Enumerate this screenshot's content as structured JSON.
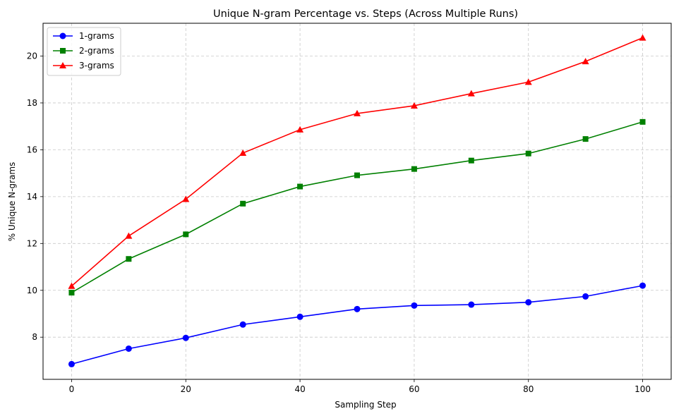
{
  "chart_data": {
    "type": "line",
    "title": "Unique N-gram Percentage vs. Steps (Across Multiple Runs)",
    "xlabel": "Sampling Step",
    "ylabel": "% Unique N-grams",
    "xlim": [
      -5,
      105
    ],
    "ylim": [
      6.2,
      21.4
    ],
    "xticks": [
      0,
      20,
      40,
      60,
      80,
      100
    ],
    "yticks": [
      8,
      10,
      12,
      14,
      16,
      18,
      20
    ],
    "grid": true,
    "legend_position": "top-left",
    "x": [
      0,
      10,
      20,
      30,
      40,
      50,
      60,
      70,
      80,
      90,
      100
    ],
    "series": [
      {
        "name": "1-grams",
        "color": "#0000ff",
        "marker": "circle",
        "values": [
          6.85,
          7.51,
          7.97,
          8.54,
          8.87,
          9.2,
          9.35,
          9.39,
          9.49,
          9.74,
          10.2
        ]
      },
      {
        "name": "2-grams",
        "color": "#008000",
        "marker": "square",
        "values": [
          9.9,
          11.34,
          12.39,
          13.7,
          14.43,
          14.91,
          15.18,
          15.54,
          15.84,
          16.46,
          17.19
        ]
      },
      {
        "name": "3-grams",
        "color": "#ff0000",
        "marker": "triangle",
        "values": [
          10.18,
          12.32,
          13.89,
          15.86,
          16.86,
          17.55,
          17.88,
          18.4,
          18.89,
          19.77,
          20.78
        ]
      }
    ]
  }
}
